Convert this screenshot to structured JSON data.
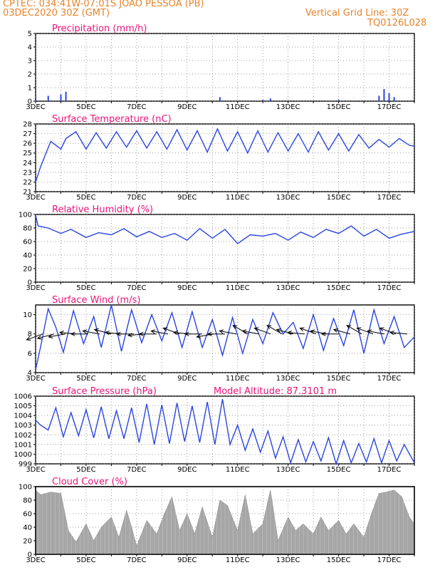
{
  "header": {
    "line1": "CPTEC:   034:41W-07:01S   JOAO PESSOA (PB)",
    "line2": "03DEC2020 30Z (GMT)",
    "grid_note": "Vertical Grid Line: 30Z",
    "code": "TQ0126L028"
  },
  "colors": {
    "header": "#e8832a",
    "title": "#e8157a",
    "line": "#2b45e0",
    "cloud": "#a6a6a6"
  },
  "x_dates": [
    "3DEC",
    "5DEC",
    "7DEC",
    "9DEC",
    "11DEC",
    "13DEC",
    "15DEC",
    "17DEC"
  ],
  "chart_data": [
    {
      "type": "bar",
      "title": "Precipitation (mm/h)",
      "ylim": [
        0,
        5
      ],
      "yticks": [
        "0",
        "1",
        "2",
        "3",
        "4",
        "5"
      ],
      "xticks": [
        "3DEC",
        "5DEC",
        "7DEC",
        "9DEC",
        "11DEC",
        "13DEC",
        "15DEC",
        "17DEC"
      ],
      "x": [
        "3DEC",
        "3.5DEC",
        "4DEC",
        "4.2DEC",
        "10.3DEC",
        "12DEC",
        "12.3DEC",
        "15DEC",
        "16.6DEC",
        "16.8DEC",
        "17DEC",
        "17.2DEC"
      ],
      "values": [
        0.3,
        0.4,
        0.5,
        0.7,
        0.3,
        0.1,
        0.2,
        0.1,
        0.4,
        0.9,
        0.6,
        0.3
      ]
    },
    {
      "type": "line",
      "title": "Surface Temperature (nC)",
      "ylim": [
        21,
        28
      ],
      "yticks": [
        "21",
        "22",
        "23",
        "24",
        "25",
        "26",
        "27",
        "28"
      ],
      "xticks": [
        "3DEC",
        "5DEC",
        "7DEC",
        "9DEC",
        "11DEC",
        "13DEC",
        "15DEC",
        "17DEC"
      ],
      "x": [
        3.0,
        3.2,
        3.6,
        4.0,
        4.2,
        4.6,
        5.0,
        5.4,
        5.8,
        6.2,
        6.6,
        7.0,
        7.4,
        7.8,
        8.2,
        8.6,
        9.0,
        9.4,
        9.8,
        10.2,
        10.6,
        11.0,
        11.4,
        11.8,
        12.2,
        12.6,
        13.0,
        13.4,
        13.8,
        14.2,
        14.6,
        15.0,
        15.4,
        15.8,
        16.2,
        16.6,
        17.0,
        17.4,
        17.8,
        18.0
      ],
      "values": [
        22.0,
        23.6,
        26.2,
        25.4,
        26.5,
        27.2,
        25.4,
        27.1,
        25.5,
        27.2,
        25.6,
        27.3,
        25.5,
        27.2,
        25.4,
        27.4,
        25.3,
        27.3,
        25.1,
        27.5,
        25.2,
        27.2,
        25.0,
        27.3,
        25.1,
        27.1,
        25.2,
        27.0,
        25.1,
        27.2,
        25.3,
        27.0,
        25.2,
        26.9,
        25.5,
        26.4,
        25.6,
        26.5,
        25.8,
        25.7
      ]
    },
    {
      "type": "line",
      "title": "Relative Humidity (%)",
      "ylim": [
        0,
        100
      ],
      "yticks": [
        "0",
        "20",
        "40",
        "60",
        "80",
        "100"
      ],
      "xticks": [
        "3DEC",
        "5DEC",
        "7DEC",
        "9DEC",
        "11DEC",
        "13DEC",
        "15DEC",
        "17DEC"
      ],
      "x": [
        3.0,
        3.1,
        3.5,
        4.0,
        4.4,
        5.0,
        5.5,
        6.0,
        6.5,
        7.0,
        7.5,
        8.0,
        8.5,
        9.0,
        9.5,
        10.0,
        10.5,
        11.0,
        11.5,
        12.0,
        12.5,
        13.0,
        13.5,
        14.0,
        14.5,
        15.0,
        15.5,
        16.0,
        16.5,
        17.0,
        17.5,
        18.0
      ],
      "values": [
        99,
        83,
        80,
        72,
        78,
        66,
        73,
        70,
        79,
        67,
        75,
        66,
        72,
        62,
        79,
        65,
        78,
        57,
        70,
        68,
        72,
        62,
        74,
        66,
        78,
        72,
        83,
        68,
        78,
        65,
        71,
        75
      ]
    },
    {
      "type": "line",
      "title": "Surface Wind (m/s)",
      "ylim": [
        4,
        11
      ],
      "yticks": [
        "4",
        "6",
        "8",
        "10"
      ],
      "xticks": [
        "3DEC",
        "5DEC",
        "7DEC",
        "9DEC",
        "11DEC",
        "13DEC",
        "15DEC",
        "17DEC"
      ],
      "x": [
        3.0,
        3.2,
        3.5,
        3.8,
        4.1,
        4.5,
        4.9,
        5.3,
        5.6,
        6.0,
        6.4,
        6.8,
        7.2,
        7.6,
        8.0,
        8.4,
        8.8,
        9.2,
        9.6,
        10.0,
        10.4,
        10.8,
        11.2,
        11.6,
        12.0,
        12.4,
        12.8,
        13.2,
        13.6,
        14.0,
        14.4,
        14.8,
        15.2,
        15.6,
        16.0,
        16.4,
        16.8,
        17.2,
        17.6,
        18.0
      ],
      "values": [
        4.3,
        6.7,
        10.6,
        8.7,
        6.1,
        10.4,
        7.0,
        9.8,
        6.6,
        11.0,
        6.2,
        10.5,
        7.1,
        10.0,
        7.3,
        10.2,
        6.6,
        10.3,
        6.6,
        9.5,
        5.8,
        9.7,
        6.0,
        9.5,
        7.0,
        10.2,
        8.0,
        9.2,
        6.5,
        10.0,
        6.3,
        9.6,
        6.8,
        10.5,
        6.0,
        10.5,
        7.0,
        9.8,
        6.6,
        7.7
      ],
      "vectors_angle_deg": [
        200,
        195,
        190,
        175,
        180,
        170,
        165,
        175,
        180,
        185,
        180,
        170,
        160,
        175,
        180,
        190,
        180,
        170,
        150,
        170,
        160,
        150,
        165,
        175,
        160,
        170,
        180,
        165,
        150,
        160,
        170,
        160,
        175
      ]
    },
    {
      "type": "line",
      "title": "Surface Pressure (hPa)",
      "annotation": "Model Altitude: 87.3101  m",
      "ylim": [
        999,
        1006
      ],
      "yticks": [
        "999",
        "1000",
        "1001",
        "1002",
        "1003",
        "1004",
        "1005",
        "1006"
      ],
      "xticks": [
        "3DEC",
        "5DEC",
        "7DEC",
        "9DEC",
        "11DEC",
        "13DEC",
        "15DEC",
        "17DEC"
      ],
      "x": [
        3.0,
        3.2,
        3.5,
        3.8,
        4.1,
        4.4,
        4.7,
        5.0,
        5.3,
        5.6,
        5.9,
        6.2,
        6.5,
        6.8,
        7.1,
        7.4,
        7.7,
        8.0,
        8.3,
        8.6,
        8.9,
        9.2,
        9.5,
        9.8,
        10.1,
        10.4,
        10.7,
        11.0,
        11.3,
        11.6,
        11.9,
        12.2,
        12.5,
        12.8,
        13.1,
        13.4,
        13.7,
        14.0,
        14.3,
        14.6,
        14.9,
        15.2,
        15.5,
        15.8,
        16.1,
        16.4,
        16.7,
        17.0,
        17.3,
        17.6,
        18.0
      ],
      "values": [
        1003.5,
        1003.0,
        1002.5,
        1004.8,
        1001.8,
        1004.3,
        1001.9,
        1004.6,
        1001.7,
        1004.9,
        1001.6,
        1004.5,
        1001.6,
        1004.8,
        1001.2,
        1005.2,
        1001.0,
        1005.1,
        1001.1,
        1005.3,
        1001.3,
        1005.0,
        1001.2,
        1005.4,
        1001.0,
        1005.7,
        1001.0,
        1003.0,
        1000.4,
        1002.6,
        1000.2,
        1002.4,
        999.6,
        1001.8,
        999.1,
        1001.5,
        999.2,
        1001.3,
        999.3,
        1001.7,
        999.0,
        1001.4,
        999.1,
        1001.1,
        999.2,
        1001.6,
        999.1,
        1001.4,
        999.3,
        1001.0,
        999.1
      ]
    },
    {
      "type": "area",
      "title": "Cloud Cover (%)",
      "ylim": [
        0,
        100
      ],
      "yticks": [
        "0",
        "20",
        "40",
        "60",
        "80",
        "100"
      ],
      "xticks": [
        "3DEC",
        "5DEC",
        "7DEC",
        "9DEC",
        "11DEC",
        "13DEC",
        "15DEC",
        "17DEC"
      ],
      "x": [
        3.0,
        3.2,
        3.6,
        4.0,
        4.3,
        4.6,
        5.0,
        5.3,
        5.6,
        6.0,
        6.3,
        6.6,
        6.8,
        7.0,
        7.4,
        7.8,
        8.1,
        8.4,
        8.7,
        9.0,
        9.3,
        9.6,
        10.0,
        10.3,
        10.6,
        11.0,
        11.3,
        11.6,
        12.0,
        12.3,
        12.6,
        13.0,
        13.3,
        13.6,
        14.0,
        14.3,
        14.6,
        15.0,
        15.3,
        15.6,
        16.0,
        16.3,
        16.6,
        16.9,
        17.2,
        17.5,
        17.8,
        18.0
      ],
      "values": [
        95,
        88,
        92,
        90,
        35,
        18,
        45,
        20,
        40,
        55,
        25,
        65,
        40,
        12,
        50,
        30,
        60,
        85,
        35,
        60,
        30,
        70,
        25,
        80,
        72,
        35,
        88,
        30,
        45,
        95,
        20,
        55,
        35,
        45,
        30,
        55,
        35,
        50,
        30,
        45,
        25,
        60,
        90,
        92,
        95,
        85,
        55,
        45
      ]
    }
  ]
}
